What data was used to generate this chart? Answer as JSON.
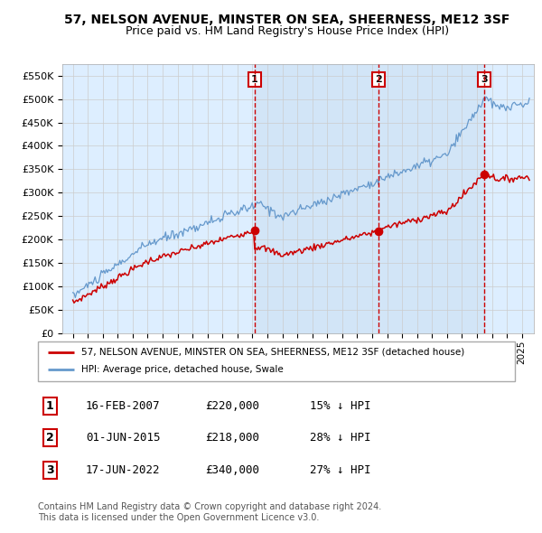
{
  "title": "57, NELSON AVENUE, MINSTER ON SEA, SHEERNESS, ME12 3SF",
  "subtitle": "Price paid vs. HM Land Registry's House Price Index (HPI)",
  "ylim": [
    0,
    575000
  ],
  "yticks": [
    0,
    50000,
    100000,
    150000,
    200000,
    250000,
    300000,
    350000,
    400000,
    450000,
    500000,
    550000
  ],
  "ytick_labels": [
    "£0",
    "£50K",
    "£100K",
    "£150K",
    "£200K",
    "£250K",
    "£300K",
    "£350K",
    "£400K",
    "£450K",
    "£500K",
    "£550K"
  ],
  "sale_prices": [
    220000,
    218000,
    340000
  ],
  "sale_numbers": [
    "1",
    "2",
    "3"
  ],
  "legend_red": "57, NELSON AVENUE, MINSTER ON SEA, SHEERNESS, ME12 3SF (detached house)",
  "legend_blue": "HPI: Average price, detached house, Swale",
  "table_entries": [
    {
      "num": "1",
      "date": "16-FEB-2007",
      "price": "£220,000",
      "pct": "15% ↓ HPI"
    },
    {
      "num": "2",
      "date": "01-JUN-2015",
      "price": "£218,000",
      "pct": "28% ↓ HPI"
    },
    {
      "num": "3",
      "date": "17-JUN-2022",
      "price": "£340,000",
      "pct": "27% ↓ HPI"
    }
  ],
  "footnote1": "Contains HM Land Registry data © Crown copyright and database right 2024.",
  "footnote2": "This data is licensed under the Open Government Licence v3.0.",
  "red_color": "#cc0000",
  "blue_color": "#6699cc",
  "fill_color": "#ddeeff",
  "background_color": "#ddeeff",
  "grid_color": "#cccccc",
  "title_fontsize": 10,
  "subtitle_fontsize": 9
}
